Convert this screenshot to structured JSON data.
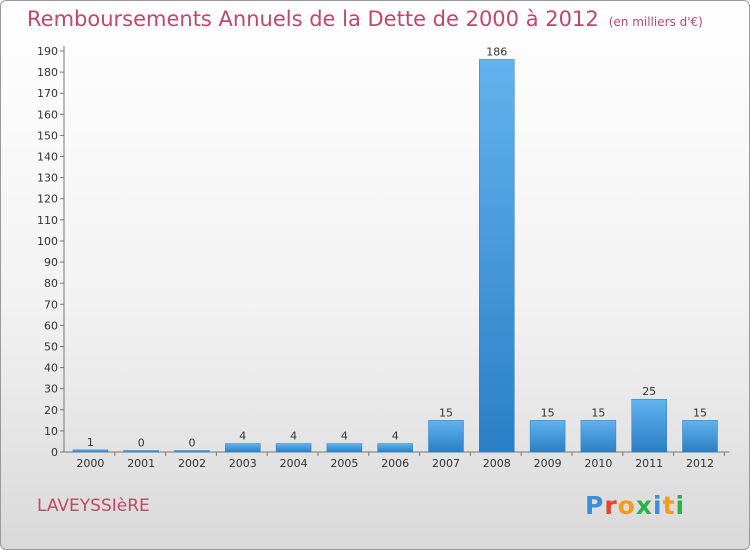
{
  "header": {
    "title": "Remboursements Annuels de la Dette de 2000 à 2012",
    "unit": "(en milliers d'€)"
  },
  "footer": {
    "town": "LAVEYSSIèRE",
    "logo_letters": [
      "P",
      "r",
      "o",
      "x",
      "i",
      "t",
      "i"
    ],
    "logo_colors": [
      "#3a8fd6",
      "#e8412c",
      "#f39c1a",
      "#2bb04a",
      "#3a8fd6",
      "#f39c1a",
      "#2bb04a"
    ]
  },
  "chart_data": {
    "type": "bar",
    "title": "Remboursements Annuels de la Dette de 2000 à 2012",
    "categories": [
      "2000",
      "2001",
      "2002",
      "2003",
      "2004",
      "2005",
      "2006",
      "2007",
      "2008",
      "2009",
      "2010",
      "2011",
      "2012"
    ],
    "values": [
      1,
      0,
      0,
      4,
      4,
      4,
      4,
      15,
      186,
      15,
      15,
      25,
      15
    ],
    "ylim": [
      0,
      190
    ],
    "ytick_step": 10,
    "grid": false,
    "bar_color": "#3a95dc"
  }
}
